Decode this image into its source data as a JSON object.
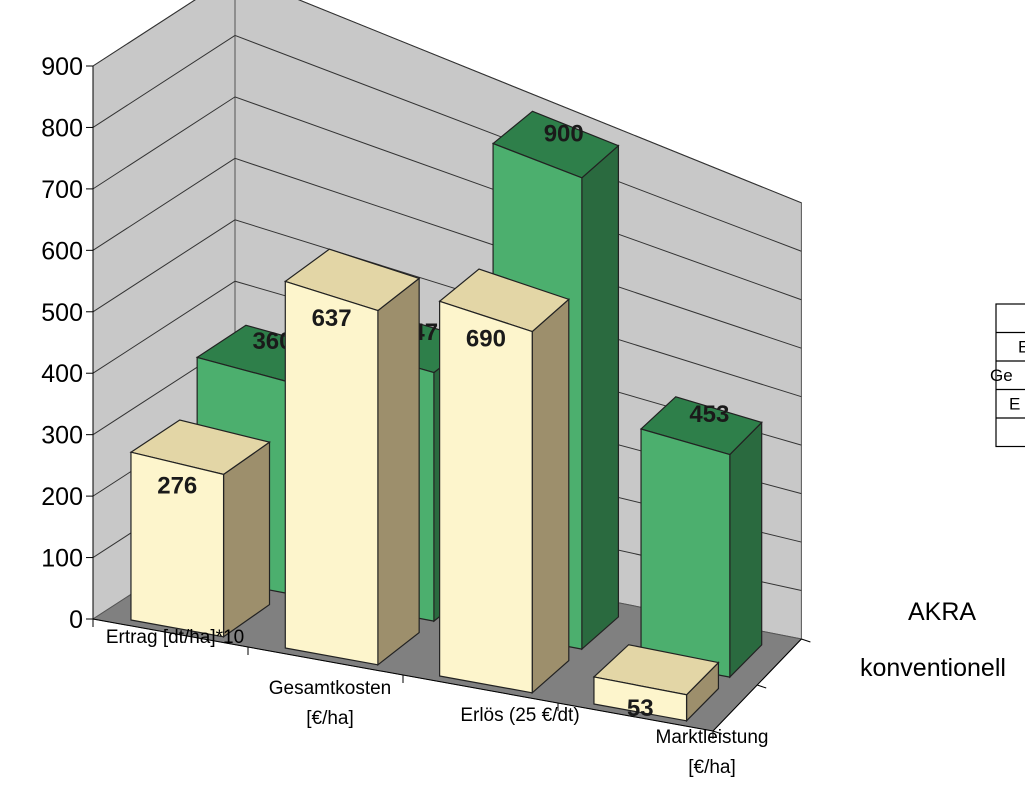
{
  "chart_data": {
    "type": "bar",
    "subtype": "3d-column",
    "categories": [
      [
        "Ertrag [dt/ha]*10"
      ],
      [
        "Gesamtkosten",
        "[€/ha]"
      ],
      [
        "Erlös (25 €/dt)"
      ],
      [
        "Marktleistung",
        "[€/ha]"
      ]
    ],
    "depth_labels": [
      "AKRA",
      "konventionell"
    ],
    "series": [
      {
        "name": "konventionell",
        "values": [
          276,
          637,
          690,
          53
        ],
        "color": "#fdf5cc"
      },
      {
        "name": "AKRA",
        "values": [
          360,
          447,
          900,
          453
        ],
        "color": "#4caf6e"
      }
    ],
    "ylim": [
      0,
      900
    ],
    "yticks": [
      0,
      100,
      200,
      300,
      400,
      500,
      600,
      700,
      800,
      900
    ],
    "grid": true,
    "table_fragments": [
      "E",
      "Ge",
      "E"
    ],
    "colors": {
      "back_wall": "#c8c8c8",
      "floor": "#808080",
      "front_front": "#fdf5cc",
      "front_top": "#e3d6a6",
      "front_side": "#9d8f6c",
      "back_front": "#4caf6e",
      "back_top": "#2e7f4a",
      "back_side": "#2a6a3f"
    }
  }
}
